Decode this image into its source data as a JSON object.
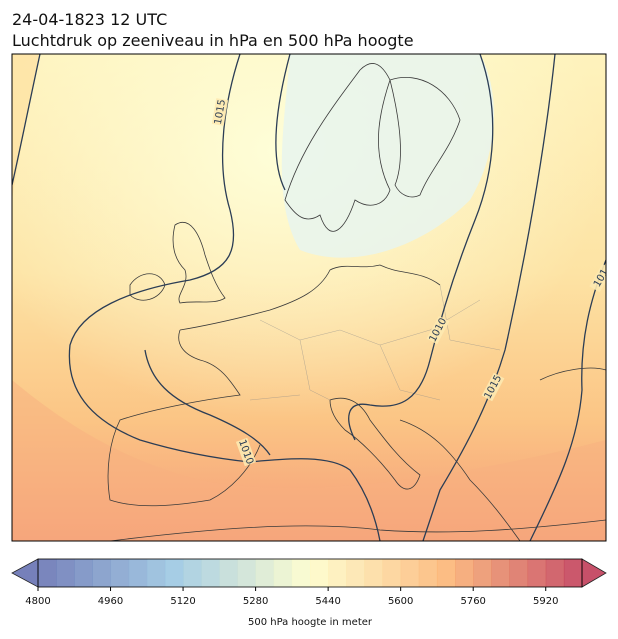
{
  "header": {
    "title": "24-04-1823 12 UTC",
    "subtitle": "Luchtdruk op zeeniveau in hPa en 500 hPa hoogte"
  },
  "contour_labels": [
    "1015",
    "1010",
    "1015",
    "1010",
    "101"
  ],
  "colorbar": {
    "label": "500 hPa hoogte in meter",
    "lim": [
      4800,
      6000
    ],
    "ticks": [
      4800,
      4960,
      5120,
      5280,
      5440,
      5600,
      5760,
      5920
    ]
  }
}
